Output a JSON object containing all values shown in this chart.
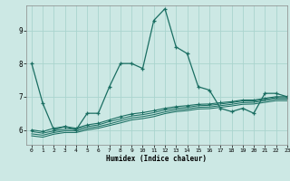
{
  "xlabel": "Humidex (Indice chaleur)",
  "xlim": [
    -0.5,
    23
  ],
  "ylim": [
    5.55,
    9.75
  ],
  "bg_color": "#cce8e4",
  "grid_color": "#aad4ce",
  "line_color": "#1a6e62",
  "line1": [
    8.0,
    6.8,
    6.0,
    6.1,
    6.0,
    6.5,
    6.5,
    7.3,
    8.0,
    8.0,
    7.85,
    9.3,
    9.65,
    8.5,
    8.3,
    7.3,
    7.2,
    6.65,
    6.55,
    6.65,
    6.5,
    7.1,
    7.1,
    7.0
  ],
  "line2": [
    6.0,
    5.95,
    6.05,
    6.1,
    6.05,
    6.15,
    6.2,
    6.3,
    6.4,
    6.48,
    6.52,
    6.58,
    6.65,
    6.7,
    6.73,
    6.77,
    6.78,
    6.82,
    6.85,
    6.9,
    6.9,
    6.95,
    7.0,
    7.0
  ],
  "line3": [
    5.95,
    5.9,
    5.97,
    6.02,
    6.02,
    6.1,
    6.15,
    6.25,
    6.33,
    6.42,
    6.46,
    6.52,
    6.6,
    6.65,
    6.68,
    6.73,
    6.74,
    6.78,
    6.82,
    6.87,
    6.87,
    6.92,
    6.97,
    6.97
  ],
  "line4": [
    5.88,
    5.84,
    5.92,
    5.97,
    5.97,
    6.05,
    6.1,
    6.18,
    6.27,
    6.36,
    6.4,
    6.46,
    6.54,
    6.6,
    6.63,
    6.68,
    6.69,
    6.73,
    6.77,
    6.82,
    6.83,
    6.88,
    6.93,
    6.93
  ],
  "line5": [
    5.82,
    5.78,
    5.87,
    5.92,
    5.92,
    6.0,
    6.05,
    6.13,
    6.21,
    6.3,
    6.34,
    6.4,
    6.49,
    6.55,
    6.58,
    6.63,
    6.64,
    6.68,
    6.72,
    6.77,
    6.78,
    6.83,
    6.88,
    6.88
  ],
  "xticks": [
    0,
    1,
    2,
    3,
    4,
    5,
    6,
    7,
    8,
    9,
    10,
    11,
    12,
    13,
    14,
    15,
    16,
    17,
    18,
    19,
    20,
    21,
    22,
    23
  ],
  "yticks": [
    6,
    7,
    8,
    9
  ]
}
